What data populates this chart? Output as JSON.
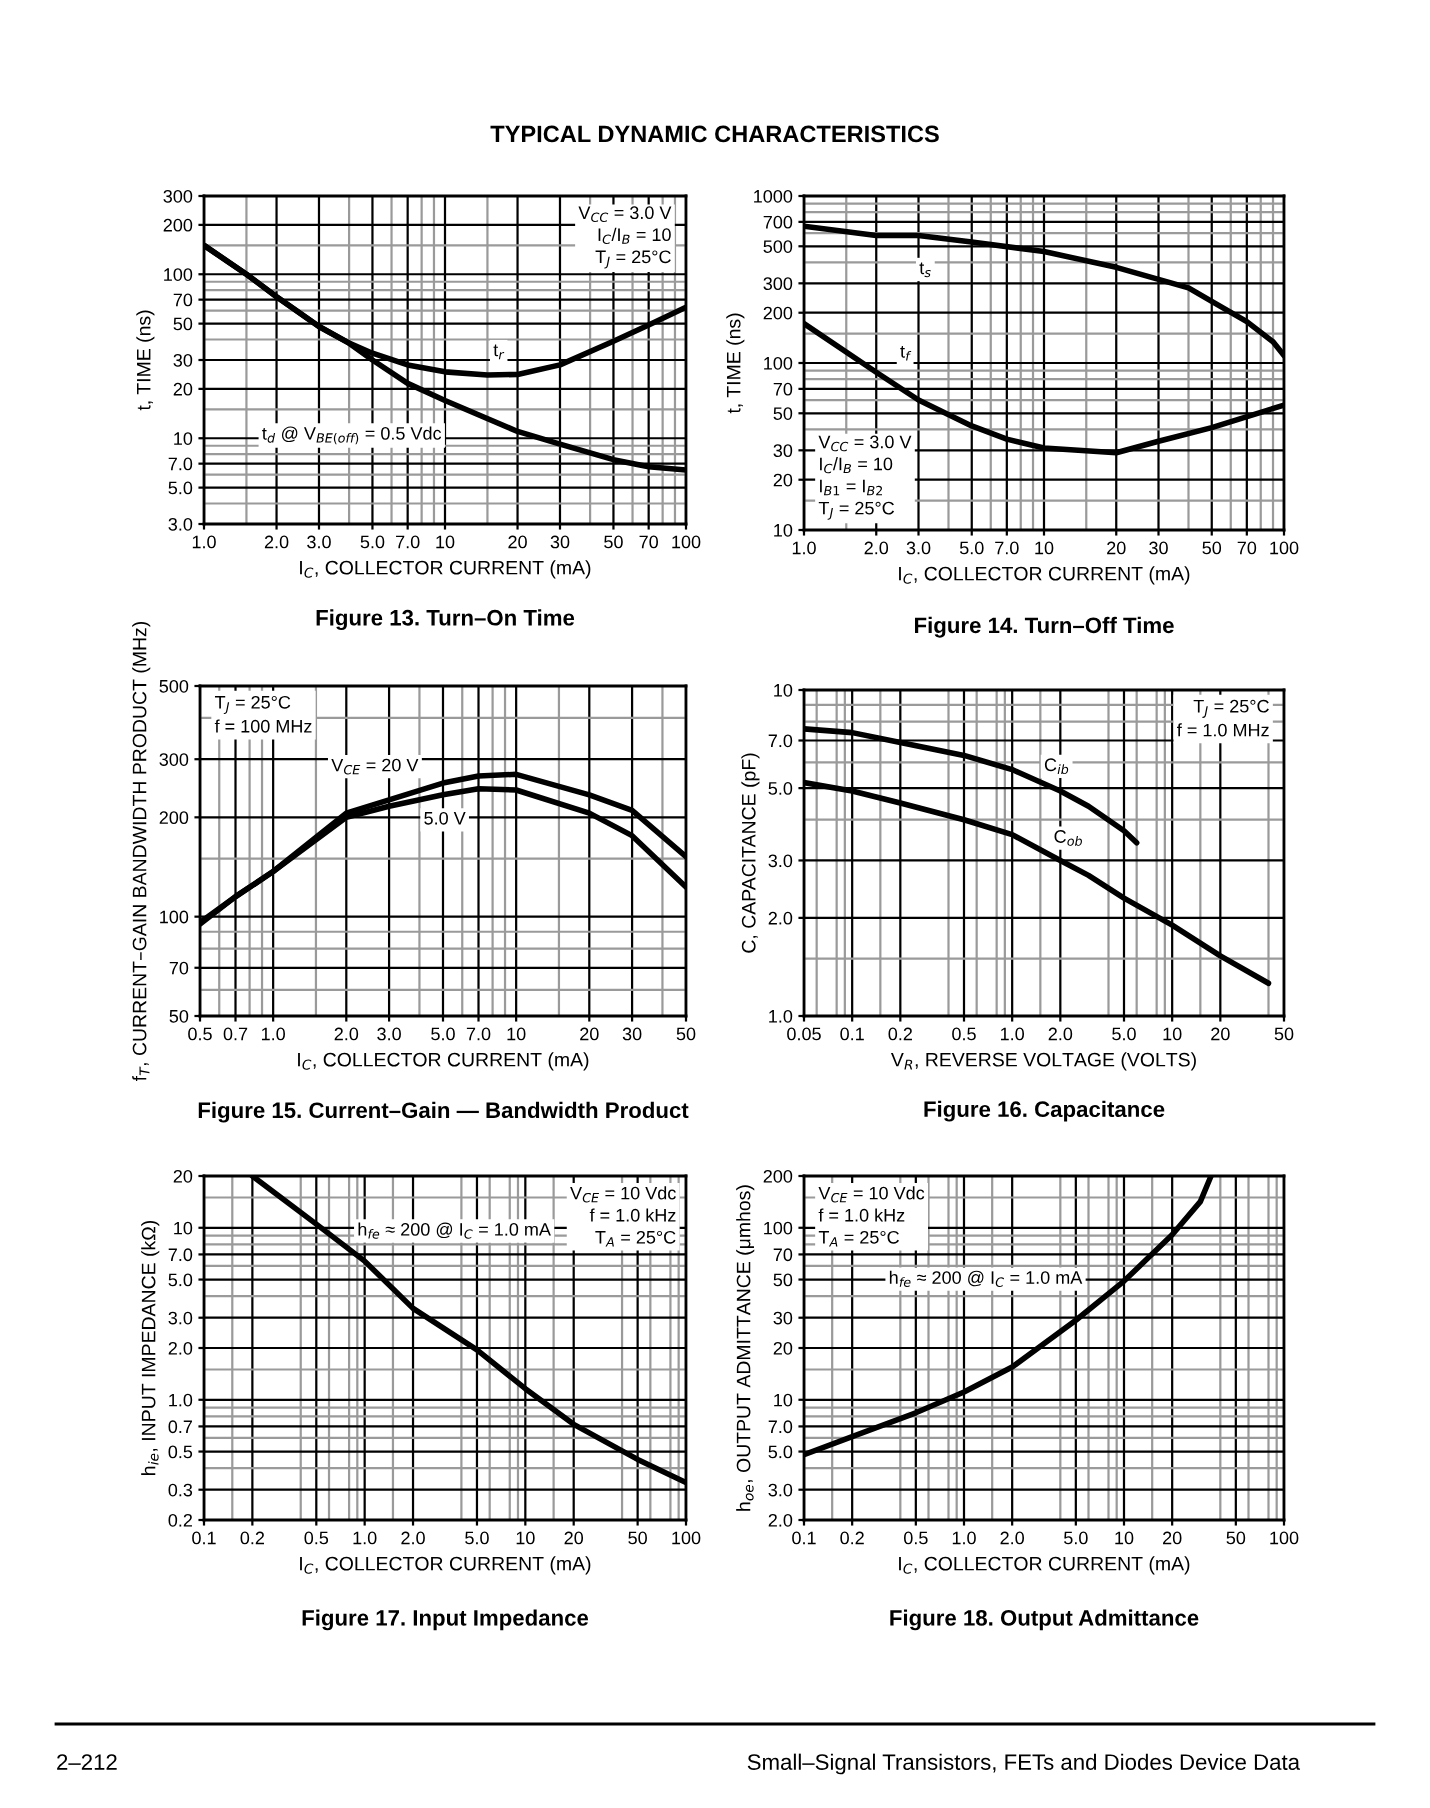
{
  "chart_data": [
    {
      "type": "line",
      "title": "Figure 13. Turn–On Time",
      "subtitle": "TYPICAL DYNAMIC CHARACTERISTICS",
      "xlabel": "I$_{C}$, COLLECTOR CURRENT (mA)",
      "ylabel": "t, TIME (ns)",
      "log": "xy",
      "grid": true,
      "xlim": [
        1,
        100
      ],
      "ylim": [
        3,
        300
      ],
      "xticks": [
        {
          "value": 1,
          "label": "1.0"
        },
        {
          "value": 2,
          "label": "2.0"
        },
        {
          "value": 3,
          "label": "3.0"
        },
        {
          "value": 5,
          "label": "5.0"
        },
        {
          "value": 7,
          "label": "7.0"
        },
        10,
        20,
        30,
        50,
        70,
        100
      ],
      "yticks": [
        {
          "value": 3,
          "label": "3.0"
        },
        {
          "value": 5,
          "label": "5.0"
        },
        {
          "value": 7,
          "label": "7.0"
        },
        10,
        20,
        30,
        50,
        70,
        100,
        200,
        300
      ],
      "series": [
        {
          "color": "#000000",
          "x": [
            1,
            1.5,
            2,
            3,
            4,
            5,
            7,
            10,
            15,
            20,
            30,
            50,
            70,
            100
          ],
          "values": [
            150,
            100,
            73,
            48,
            38,
            33,
            28,
            25.4,
            24.3,
            24.5,
            28,
            39,
            49,
            63
          ]
        },
        {
          "color": "#000000",
          "x": [
            1,
            1.5,
            2,
            3,
            4,
            5,
            7,
            10,
            20,
            30,
            50,
            70,
            100
          ],
          "values": [
            150,
            100,
            73,
            48,
            38,
            30,
            21.6,
            17,
            11,
            9.2,
            7.4,
            6.7,
            6.4
          ]
        }
      ],
      "annotations": [
        "V$_{CC}$ = 3.0 V\nI$_{C}$/I$_{B}$ = 10\nT$_{J}$ = 25°C",
        "t$_{r}$",
        "t$_{d}$ @ V$_{BE(off)}$ = 0.5 Vdc"
      ]
    },
    {
      "type": "line",
      "title": "Figure 14. Turn–Off Time",
      "xlabel": "I$_{C}$, COLLECTOR CURRENT (mA)",
      "ylabel": "t, TIME (ns)",
      "log": "xy",
      "grid": true,
      "xlim": [
        1,
        100
      ],
      "ylim": [
        10,
        1000
      ],
      "xticks": [
        {
          "value": 1,
          "label": "1.0"
        },
        {
          "value": 2,
          "label": "2.0"
        },
        {
          "value": 3,
          "label": "3.0"
        },
        {
          "value": 5,
          "label": "5.0"
        },
        {
          "value": 7,
          "label": "7.0"
        },
        10,
        20,
        30,
        50,
        70,
        100
      ],
      "yticks": [
        10,
        20,
        30,
        50,
        70,
        100,
        200,
        300,
        500,
        700,
        1000
      ],
      "series": [
        {
          "color": "#000000",
          "x": [
            1,
            2,
            3,
            5,
            10,
            20,
            40,
            50,
            70,
            90,
            100
          ],
          "values": [
            660,
            580,
            580,
            530,
            465,
            374,
            282,
            234,
            177,
            134,
            111
          ]
        },
        {
          "color": "#000000",
          "x": [
            1,
            2,
            3,
            5,
            7,
            10,
            20,
            30,
            50,
            100
          ],
          "values": [
            172,
            88,
            60,
            42,
            35,
            31,
            29,
            34,
            41,
            56
          ]
        }
      ],
      "annotations": [
        "V$_{CC}$ = 3.0 V\nI$_{C}$/I$_{B}$ = 10\nI$_{B1}$ = I$_{B2}$\nT$_{J}$ = 25°C",
        "t$_{s}$",
        "t$_{f}$"
      ]
    },
    {
      "type": "line",
      "title": "Figure 15. Current–Gain — Bandwidth Product",
      "xlabel": "I$_{C}$, COLLECTOR CURRENT (mA)",
      "ylabel": "f$_{T}$, CURRENT–GAIN BANDWIDTH PRODUCT (MHz)",
      "log": "xy",
      "grid": true,
      "xlim": [
        0.5,
        50
      ],
      "ylim": [
        50,
        500
      ],
      "xticks": [
        0.5,
        0.7,
        {
          "value": 1,
          "label": "1.0"
        },
        {
          "value": 2,
          "label": "2.0"
        },
        {
          "value": 3,
          "label": "3.0"
        },
        {
          "value": 5,
          "label": "5.0"
        },
        {
          "value": 7,
          "label": "7.0"
        },
        10,
        20,
        30,
        50
      ],
      "yticks": [
        50,
        70,
        100,
        200,
        300,
        500
      ],
      "series": [
        {
          "color": "#000000",
          "x": [
            0.5,
            0.7,
            1,
            2,
            3,
            5,
            7,
            10,
            20,
            30,
            50
          ],
          "values": [
            96,
            115,
            137,
            206,
            226,
            254,
            267,
            270,
            234,
            210,
            152
          ]
        },
        {
          "color": "#000000",
          "x": [
            0.5,
            0.7,
            1,
            2,
            3,
            5,
            7,
            10,
            20,
            30,
            50
          ],
          "values": [
            95,
            115,
            137,
            200,
            216,
            234,
            244,
            242,
            206,
            176,
            123
          ]
        }
      ],
      "annotations": [
        "T$_{J}$ = 25°C\nf = 100 MHz",
        "V$_{CE}$ = 20 V",
        "5.0 V"
      ]
    },
    {
      "type": "line",
      "title": "Figure 16. Capacitance",
      "xlabel": "V$_{R}$, REVERSE VOLTAGE (VOLTS)",
      "ylabel": "C, CAPACITANCE (pF)",
      "log": "xy",
      "grid": true,
      "xlim": [
        0.05,
        50
      ],
      "ylim": [
        1,
        10
      ],
      "xticks": [
        0.05,
        0.1,
        0.2,
        0.5,
        {
          "value": 1,
          "label": "1.0"
        },
        {
          "value": 2,
          "label": "2.0"
        },
        {
          "value": 5,
          "label": "5.0"
        },
        10,
        20,
        50
      ],
      "yticks": [
        {
          "value": 1,
          "label": "1.0"
        },
        {
          "value": 2,
          "label": "2.0"
        },
        {
          "value": 3,
          "label": "3.0"
        },
        {
          "value": 5,
          "label": "5.0"
        },
        {
          "value": 7,
          "label": "7.0"
        },
        10
      ],
      "series": [
        {
          "color": "#000000",
          "x": [
            0.05,
            0.1,
            0.2,
            0.5,
            1,
            2,
            3,
            5,
            6
          ],
          "values": [
            7.6,
            7.4,
            6.9,
            6.3,
            5.7,
            4.9,
            4.4,
            3.7,
            3.4
          ]
        },
        {
          "color": "#000000",
          "x": [
            0.05,
            0.1,
            0.2,
            0.5,
            1,
            2,
            3,
            5,
            10,
            20,
            40
          ],
          "values": [
            5.2,
            4.9,
            4.5,
            4.0,
            3.6,
            3.0,
            2.7,
            2.3,
            1.9,
            1.53,
            1.26
          ]
        }
      ],
      "annotations": [
        "T$_{J}$ = 25°C\nf = 1.0 MHz",
        "C$_{ib}$",
        "C$_{ob}$"
      ]
    },
    {
      "type": "line",
      "title": "Figure 17. Input Impedance",
      "xlabel": "I$_{C}$, COLLECTOR CURRENT (mA)",
      "ylabel": "h$_{ie}$, INPUT IMPEDANCE (kΩ)",
      "log": "xy",
      "grid": true,
      "xlim": [
        0.1,
        100
      ],
      "ylim": [
        0.2,
        20
      ],
      "xticks": [
        0.1,
        0.2,
        0.5,
        {
          "value": 1,
          "label": "1.0"
        },
        {
          "value": 2,
          "label": "2.0"
        },
        {
          "value": 5,
          "label": "5.0"
        },
        10,
        20,
        50,
        100
      ],
      "yticks": [
        0.2,
        0.3,
        0.5,
        0.7,
        {
          "value": 1,
          "label": "1.0"
        },
        {
          "value": 2,
          "label": "2.0"
        },
        {
          "value": 3,
          "label": "3.0"
        },
        {
          "value": 5,
          "label": "5.0"
        },
        {
          "value": 7,
          "label": "7.0"
        },
        10,
        20
      ],
      "series": [
        {
          "color": "#000000",
          "x": [
            0.2,
            0.5,
            1,
            2,
            5,
            10,
            20,
            50,
            100
          ],
          "values": [
            20,
            10.5,
            6.4,
            3.4,
            1.95,
            1.16,
            0.72,
            0.45,
            0.33
          ]
        }
      ],
      "annotations": [
        "V$_{CE}$ = 10 Vdc\nf = 1.0 kHz\nT$_{A}$ = 25°C",
        "h$_{fe}$ ≈ 200 @ I$_{C}$ = 1.0 mA"
      ]
    },
    {
      "type": "line",
      "title": "Figure 18. Output Admittance",
      "xlabel": "I$_{C}$, COLLECTOR CURRENT (mA)",
      "ylabel": "h$_{oe}$, OUTPUT ADMITTANCE (μmhos)",
      "log": "xy",
      "grid": true,
      "xlim": [
        0.1,
        100
      ],
      "ylim": [
        2,
        200
      ],
      "xticks": [
        0.1,
        0.2,
        0.5,
        {
          "value": 1,
          "label": "1.0"
        },
        {
          "value": 2,
          "label": "2.0"
        },
        {
          "value": 5,
          "label": "5.0"
        },
        10,
        20,
        50,
        100
      ],
      "yticks": [
        {
          "value": 2,
          "label": "2.0"
        },
        {
          "value": 3,
          "label": "3.0"
        },
        {
          "value": 5,
          "label": "5.0"
        },
        {
          "value": 7,
          "label": "7.0"
        },
        10,
        20,
        30,
        50,
        70,
        100,
        200
      ],
      "series": [
        {
          "color": "#000000",
          "x": [
            0.1,
            0.2,
            0.5,
            1,
            2,
            5,
            10,
            20,
            30,
            35
          ],
          "values": [
            4.8,
            6.1,
            8.4,
            11.1,
            15.5,
            29,
            49,
            91,
            142,
            200
          ]
        }
      ],
      "annotations": [
        "V$_{CE}$ = 10 Vdc\nf = 1.0 kHz\nT$_{A}$ = 25°C",
        "h$_{fe}$ ≈ 200 @ I$_{C}$ = 1.0 mA",
        "2–212",
        "Small–Signal Transistors, FETs and Diodes Device Data"
      ]
    }
  ]
}
